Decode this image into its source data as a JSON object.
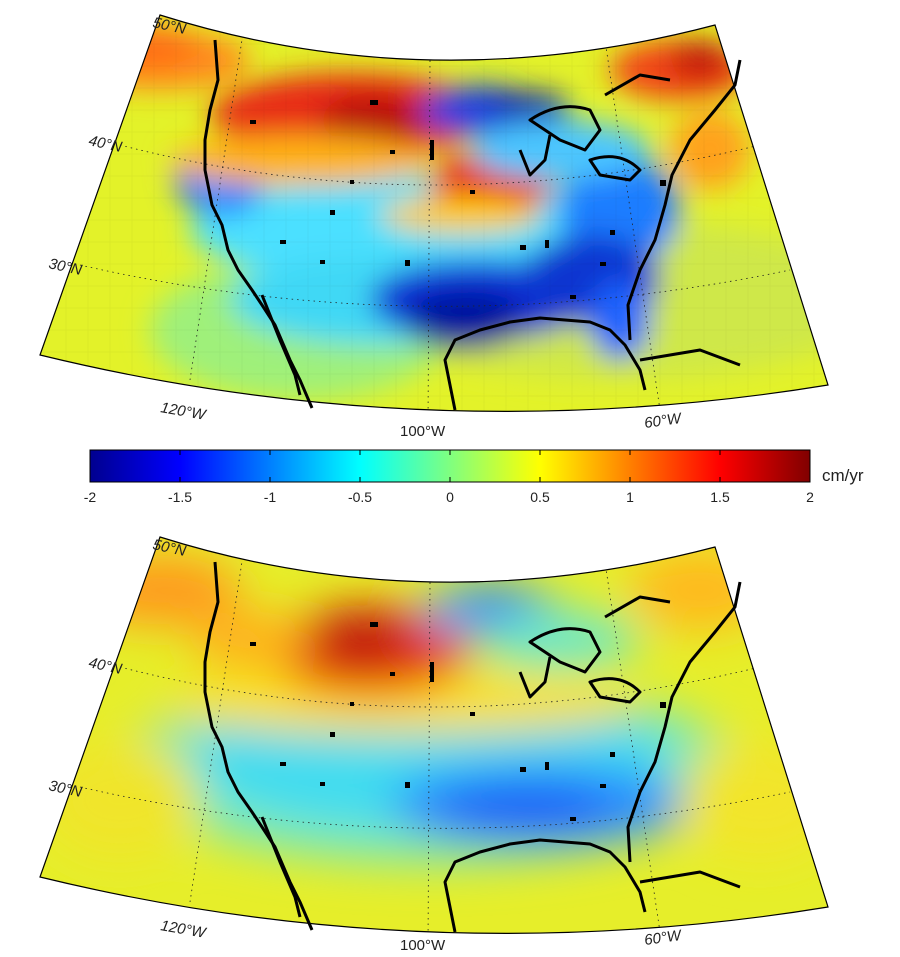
{
  "maps": [
    {
      "id": "top",
      "lat_labels": [
        "50°N",
        "40°N",
        "30°N"
      ],
      "lon_labels": [
        "120°W",
        "100°W",
        "60°W"
      ],
      "anomalies": [
        {
          "name": "northwest-high",
          "value": 1.7
        },
        {
          "name": "north-central-low",
          "value": -1.6
        },
        {
          "name": "central-plains-high",
          "value": 1.4
        },
        {
          "name": "gulf-coast-low",
          "value": -1.8
        },
        {
          "name": "southeast-low",
          "value": -1.6
        },
        {
          "name": "northeast-high",
          "value": 1.6
        },
        {
          "name": "west-coast-low",
          "value": -1.2
        }
      ]
    },
    {
      "id": "bottom",
      "lat_labels": [
        "50°N",
        "40°N",
        "30°N"
      ],
      "lon_labels": [
        "120°W",
        "100°W",
        "60°W"
      ],
      "anomalies": [
        {
          "name": "northwest-high",
          "value": 1.6
        },
        {
          "name": "north-central-low",
          "value": -1.0
        },
        {
          "name": "gulf-coast-low",
          "value": -1.3
        },
        {
          "name": "west-coast-margin",
          "value": 0.5
        },
        {
          "name": "northeast-margin",
          "value": 0.6
        }
      ]
    }
  ],
  "colorbar": {
    "min": -2,
    "max": 2,
    "ticks": [
      "-2",
      "-1.5",
      "-1",
      "-0.5",
      "0",
      "0.5",
      "1",
      "1.5",
      "2"
    ],
    "unit": "cm/yr",
    "colormap": "jet"
  }
}
